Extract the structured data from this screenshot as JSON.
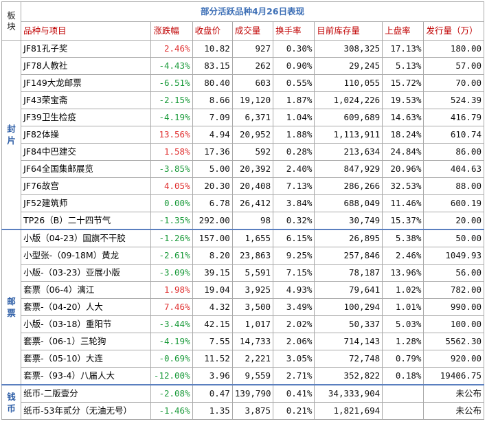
{
  "title": "部分活跃品种4月26日表现",
  "corner_label": "板块",
  "headers": [
    "品种与项目",
    "涨跌幅",
    "收盘价",
    "成交量",
    "换手率",
    "目前库存量",
    "上盘率",
    "发行量（万）"
  ],
  "groups": [
    {
      "label": "封片",
      "rows": [
        {
          "name": "JF81孔子奖",
          "change": "2.46%",
          "dir": "up",
          "close": "10.82",
          "volume": "927",
          "turnover": "0.30%",
          "stock": "308,325",
          "rate": "17.13%",
          "issue": "180.00"
        },
        {
          "name": "JF78人教社",
          "change": "-4.43%",
          "dir": "down",
          "close": "83.15",
          "volume": "262",
          "turnover": "0.90%",
          "stock": "29,245",
          "rate": "5.13%",
          "issue": "57.00"
        },
        {
          "name": "JF149大龙邮票",
          "change": "-6.51%",
          "dir": "down",
          "close": "80.40",
          "volume": "603",
          "turnover": "0.55%",
          "stock": "110,055",
          "rate": "15.72%",
          "issue": "70.00"
        },
        {
          "name": "JF43荣宝斋",
          "change": "-2.15%",
          "dir": "down",
          "close": "8.66",
          "volume": "19,120",
          "turnover": "1.87%",
          "stock": "1,024,226",
          "rate": "19.53%",
          "issue": "524.39"
        },
        {
          "name": "JF39卫生检疫",
          "change": "-4.19%",
          "dir": "down",
          "close": "7.09",
          "volume": "6,371",
          "turnover": "1.04%",
          "stock": "609,689",
          "rate": "14.63%",
          "issue": "416.79"
        },
        {
          "name": "JF82体操",
          "change": "13.56%",
          "dir": "up",
          "close": "4.94",
          "volume": "20,952",
          "turnover": "1.88%",
          "stock": "1,113,911",
          "rate": "18.24%",
          "issue": "610.74"
        },
        {
          "name": "JF84中巴建交",
          "change": "1.58%",
          "dir": "up",
          "close": "17.36",
          "volume": "592",
          "turnover": "0.28%",
          "stock": "213,634",
          "rate": "24.84%",
          "issue": "86.00"
        },
        {
          "name": "JF64全国集邮展览",
          "change": "-3.85%",
          "dir": "down",
          "close": "5.00",
          "volume": "20,392",
          "turnover": "2.40%",
          "stock": "847,929",
          "rate": "20.96%",
          "issue": "404.63"
        },
        {
          "name": "JF76故宫",
          "change": "4.05%",
          "dir": "up",
          "close": "20.30",
          "volume": "20,408",
          "turnover": "7.13%",
          "stock": "286,266",
          "rate": "32.53%",
          "issue": "88.00"
        },
        {
          "name": "JF52建筑师",
          "change": "0.00%",
          "dir": "flat",
          "close": "6.78",
          "volume": "26,412",
          "turnover": "3.84%",
          "stock": "688,049",
          "rate": "11.46%",
          "issue": "600.19"
        },
        {
          "name": "TP26（B）二十四节气",
          "change": "-1.35%",
          "dir": "down",
          "close": "292.00",
          "volume": "98",
          "turnover": "0.32%",
          "stock": "30,749",
          "rate": "15.37%",
          "issue": "20.00"
        }
      ]
    },
    {
      "label": "邮票",
      "rows": [
        {
          "name": "小版（04-23）国旗不干胶",
          "change": "-1.26%",
          "dir": "down",
          "close": "157.00",
          "volume": "1,655",
          "turnover": "6.15%",
          "stock": "26,895",
          "rate": "5.38%",
          "issue": "50.00"
        },
        {
          "name": "小型张-（09-18M）黄龙",
          "change": "-2.61%",
          "dir": "down",
          "close": "8.20",
          "volume": "23,863",
          "turnover": "9.25%",
          "stock": "257,846",
          "rate": "2.46%",
          "issue": "1049.93"
        },
        {
          "name": "小版-（03-23）亚展小版",
          "small": true,
          "change": "-3.09%",
          "dir": "down",
          "close": "39.15",
          "volume": "5,591",
          "turnover": "7.15%",
          "stock": "78,187",
          "rate": "13.96%",
          "issue": "56.00"
        },
        {
          "name": "套票（06-4）漓江",
          "change": "1.98%",
          "dir": "up",
          "close": "19.04",
          "volume": "3,925",
          "turnover": "4.93%",
          "stock": "79,641",
          "rate": "1.02%",
          "issue": "782.00"
        },
        {
          "name": "套票-（04-20）人大",
          "change": "7.46%",
          "dir": "up",
          "close": "4.32",
          "volume": "3,500",
          "turnover": "3.49%",
          "stock": "100,294",
          "rate": "1.01%",
          "issue": "990.00"
        },
        {
          "name": "小版-（03-18）重阳节",
          "change": "-3.44%",
          "dir": "down",
          "close": "42.15",
          "volume": "1,017",
          "turnover": "2.02%",
          "stock": "50,337",
          "rate": "5.03%",
          "issue": "100.00"
        },
        {
          "name": "套票-（06-1）三轮狗",
          "small": true,
          "change": "-4.19%",
          "dir": "down",
          "close": "7.55",
          "volume": "14,733",
          "turnover": "2.06%",
          "stock": "714,143",
          "rate": "1.28%",
          "issue": "5562.30"
        },
        {
          "name": "套票-（05-10）大连",
          "change": "-0.69%",
          "dir": "down",
          "close": "11.52",
          "volume": "2,221",
          "turnover": "3.05%",
          "stock": "72,748",
          "rate": "0.79%",
          "issue": "920.00"
        },
        {
          "name": "套票-（93-4）八届人大",
          "change": "-12.00%",
          "dir": "down",
          "close": "3.96",
          "volume": "9,559",
          "turnover": "2.71%",
          "stock": "352,822",
          "rate": "0.18%",
          "issue": "19406.75"
        }
      ]
    },
    {
      "label": "钱币",
      "rows": [
        {
          "name": "纸币-二版壹分",
          "change": "-2.08%",
          "dir": "down",
          "close": "0.47",
          "volume": "139,790",
          "turnover": "0.41%",
          "stock": "34,333,904",
          "rate": "",
          "issue": "未公布"
        },
        {
          "name": "纸币-53年贰分（无油无号）",
          "small": true,
          "change": "-1.46%",
          "dir": "down",
          "close": "1.35",
          "volume": "3,875",
          "turnover": "0.21%",
          "stock": "1,821,694",
          "rate": "",
          "issue": "未公布"
        }
      ]
    }
  ],
  "colors": {
    "up": "#e03030",
    "down": "#1a9a3a",
    "title": "#3d6fb6",
    "header": "#c00000",
    "group": "#2f5fa7"
  }
}
